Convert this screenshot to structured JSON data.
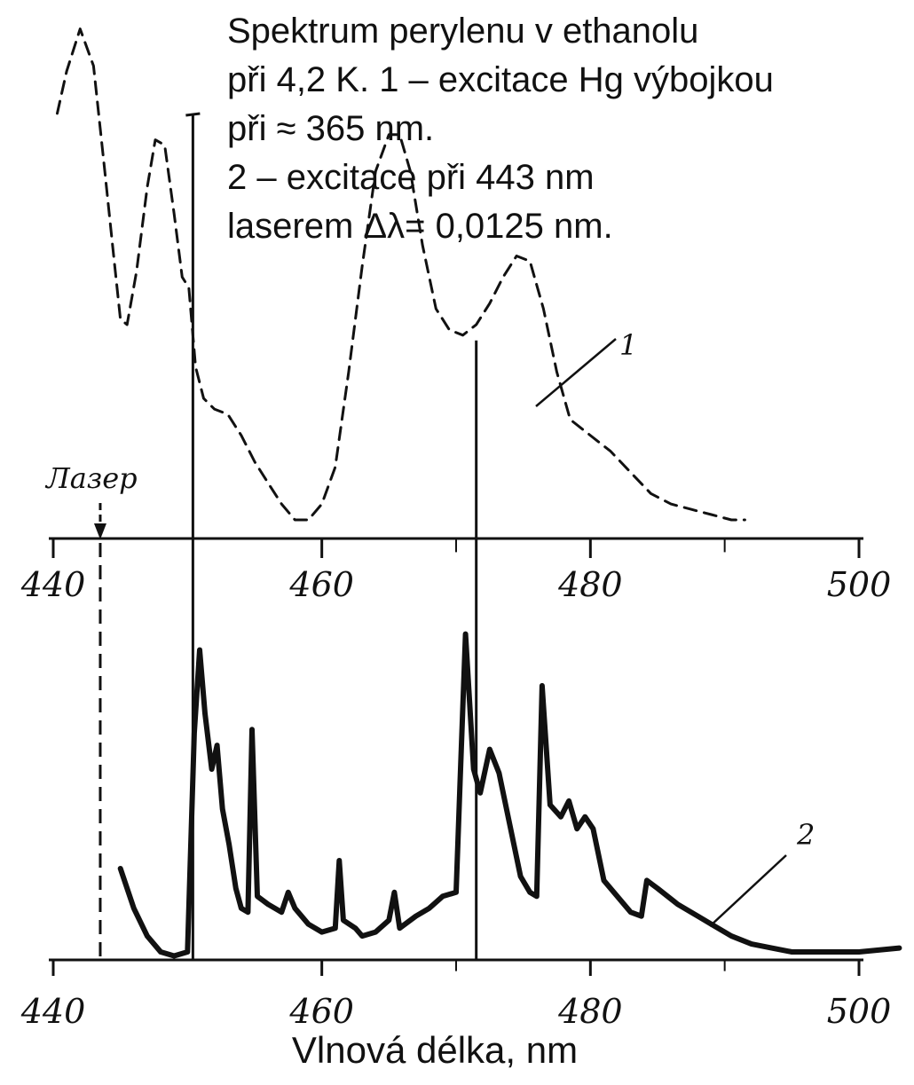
{
  "caption": {
    "lines": [
      "Spektrum perylenu v ethanolu",
      "při 4,2 K. 1 – excitace Hg výbojkou",
      "při ≈ 365 nm.",
      "2 – excitace při 443 nm",
      "laserem Δλ= 0,0125 nm."
    ]
  },
  "laser_label": "Лазер",
  "chart_data": [
    {
      "type": "line",
      "title": "",
      "xlabel": "",
      "ylabel": "",
      "xlim": [
        440,
        500
      ],
      "xticks": [
        440,
        460,
        480,
        500
      ],
      "tick_labels": [
        "440",
        "460",
        "480",
        "500"
      ],
      "line_style": "dashed",
      "series": [
        {
          "name": "1",
          "x": [
            440.3,
            441.0,
            442.0,
            443.0,
            443.8,
            444.5,
            445.0,
            445.5,
            446.2,
            447.0,
            447.6,
            448.3,
            449.0,
            449.6,
            450.1,
            450.6,
            451.2,
            452.0,
            453.0,
            454.0,
            455.0,
            456.0,
            457.0,
            458.0,
            459.0,
            460.0,
            461.0,
            462.0,
            463.0,
            464.0,
            465.0,
            465.8,
            466.6,
            467.5,
            468.5,
            469.5,
            470.5,
            471.5,
            472.5,
            473.5,
            474.5,
            475.5,
            476.5,
            477.5,
            478.5,
            479.5,
            480.5,
            481.5,
            483.0,
            484.5,
            486.0,
            487.5,
            489.0,
            490.5,
            491.5
          ],
          "y": [
            0.77,
            0.85,
            0.93,
            0.86,
            0.67,
            0.5,
            0.38,
            0.37,
            0.47,
            0.63,
            0.72,
            0.71,
            0.58,
            0.46,
            0.44,
            0.29,
            0.23,
            0.21,
            0.2,
            0.16,
            0.11,
            0.07,
            0.03,
            0.0,
            0.0,
            0.03,
            0.1,
            0.28,
            0.48,
            0.66,
            0.73,
            0.73,
            0.66,
            0.52,
            0.4,
            0.36,
            0.35,
            0.37,
            0.41,
            0.46,
            0.5,
            0.49,
            0.4,
            0.28,
            0.19,
            0.17,
            0.15,
            0.13,
            0.09,
            0.05,
            0.03,
            0.02,
            0.01,
            0.0,
            0.0
          ],
          "label": "1"
        }
      ],
      "annotations": [
        {
          "text": "Лазер",
          "x": 443.5
        }
      ],
      "lines": [
        {
          "type": "vertical_excitation",
          "x": 450.4
        },
        {
          "type": "vertical_line",
          "x": 471.5,
          "y": 0.34
        }
      ]
    },
    {
      "type": "line",
      "title": "",
      "xlabel": "Vlnová délka, nm",
      "ylabel": "",
      "xlim": [
        440,
        500
      ],
      "xticks": [
        440,
        460,
        480,
        500
      ],
      "tick_labels": [
        "440",
        "460",
        "480",
        "500"
      ],
      "line_style": "solid",
      "series": [
        {
          "name": "2",
          "x": [
            445.0,
            446.0,
            447.0,
            448.0,
            449.0,
            450.0,
            450.5,
            450.9,
            451.3,
            451.8,
            452.2,
            452.6,
            453.1,
            453.6,
            454.0,
            454.5,
            454.8,
            455.2,
            456.0,
            457.0,
            457.5,
            458.0,
            459.0,
            460.0,
            461.0,
            461.3,
            461.6,
            462.5,
            463.0,
            464.0,
            465.0,
            465.4,
            465.8,
            467.0,
            468.0,
            469.0,
            470.0,
            470.3,
            470.7,
            471.3,
            471.8,
            472.5,
            473.2,
            474.0,
            474.8,
            475.5,
            476.0,
            476.4,
            477.0,
            477.8,
            478.4,
            479.0,
            479.6,
            480.2,
            481.0,
            482.0,
            483.0,
            483.8,
            484.2,
            485.0,
            486.5,
            488.0,
            489.0,
            490.5,
            492.0,
            493.5,
            495.0,
            496.5,
            498.0,
            500.0,
            503.0
          ],
          "y": [
            0.23,
            0.13,
            0.06,
            0.02,
            0.01,
            0.02,
            0.57,
            0.78,
            0.62,
            0.48,
            0.54,
            0.38,
            0.29,
            0.18,
            0.13,
            0.12,
            0.58,
            0.16,
            0.14,
            0.12,
            0.17,
            0.13,
            0.09,
            0.07,
            0.08,
            0.25,
            0.1,
            0.08,
            0.06,
            0.07,
            0.1,
            0.17,
            0.08,
            0.11,
            0.13,
            0.16,
            0.17,
            0.45,
            0.82,
            0.48,
            0.42,
            0.53,
            0.47,
            0.34,
            0.21,
            0.17,
            0.16,
            0.69,
            0.39,
            0.36,
            0.4,
            0.33,
            0.36,
            0.33,
            0.2,
            0.16,
            0.12,
            0.11,
            0.2,
            0.18,
            0.14,
            0.11,
            0.09,
            0.06,
            0.04,
            0.03,
            0.02,
            0.02,
            0.02,
            0.02,
            0.03
          ],
          "label": "2"
        }
      ],
      "lines": [
        {
          "type": "vertical_laser_dashed",
          "x": 443.5
        }
      ]
    }
  ]
}
